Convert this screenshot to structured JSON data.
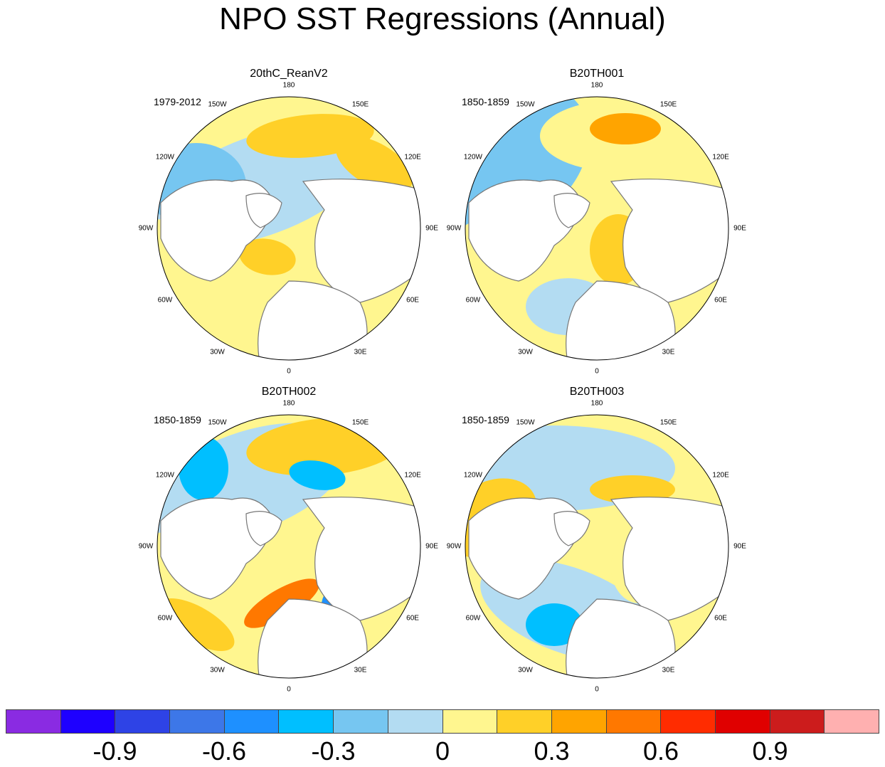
{
  "chart_data": {
    "type": "heatmap",
    "title": "NPO SST Regressions (Annual)",
    "projection": "polar stereographic (northern hemisphere)",
    "longitude_labels": [
      "180",
      "150E",
      "120E",
      "90E",
      "60E",
      "30E",
      "0",
      "30W",
      "60W",
      "90W",
      "120W",
      "150W"
    ],
    "panels": [
      {
        "title": "20thC_ReanV2",
        "period": "1979-2012"
      },
      {
        "title": "B20TH001",
        "period": "1850-1859"
      },
      {
        "title": "B20TH002",
        "period": "1850-1859"
      },
      {
        "title": "B20TH003",
        "period": "1850-1859"
      }
    ],
    "colorbar": {
      "colors": [
        "#8a2be2",
        "#1e00ff",
        "#2e43e6",
        "#3d77e8",
        "#1e90ff",
        "#00bfff",
        "#76c6f1",
        "#b3dcf2",
        "#fff68f",
        "#ffd028",
        "#ffa400",
        "#ff7800",
        "#ff2c00",
        "#e00000",
        "#cc1c1c",
        "#ffb0b0"
      ],
      "tick_labels": [
        "-0.9",
        "-0.6",
        "-0.3",
        "0",
        "0.3",
        "0.6",
        "0.9"
      ],
      "tick_values": [
        -0.9,
        -0.6,
        -0.3,
        0,
        0.3,
        0.6,
        0.9
      ]
    }
  }
}
